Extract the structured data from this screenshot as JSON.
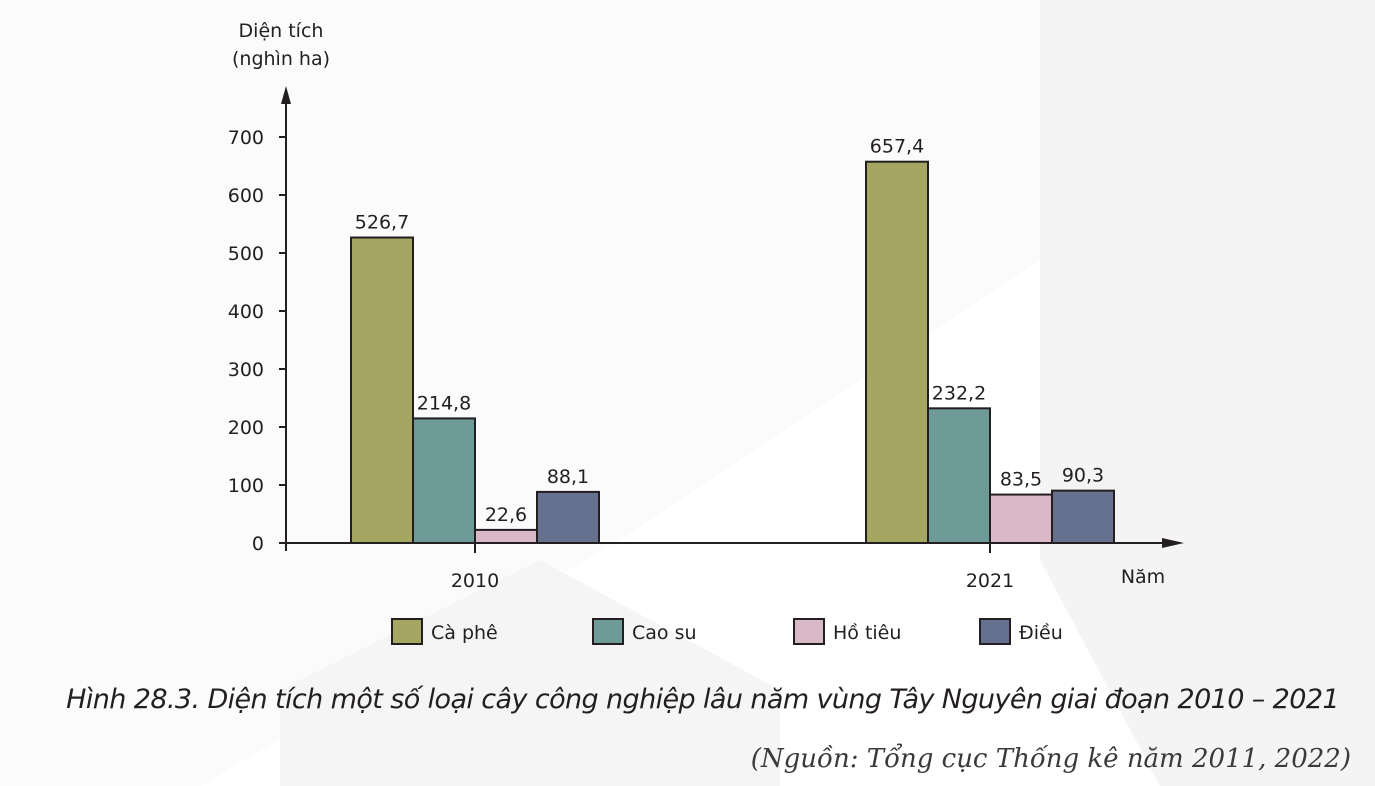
{
  "chart_data": {
    "type": "bar",
    "ylabel_line1": "Diện tích",
    "ylabel_line2": "(nghìn ha)",
    "xlabel": "Năm",
    "ylim": [
      0,
      700
    ],
    "yticks": [
      0,
      100,
      200,
      300,
      400,
      500,
      600,
      700
    ],
    "categories": [
      "2010",
      "2021"
    ],
    "series": [
      {
        "name": "Cà phê",
        "color": "#a5a661",
        "values": [
          526.7,
          657.4
        ],
        "labels": [
          "526,7",
          "657,4"
        ]
      },
      {
        "name": "Cao su",
        "color": "#6e9a97",
        "values": [
          214.8,
          232.2
        ],
        "labels": [
          "214,8",
          "232,2"
        ]
      },
      {
        "name": "Hồ tiêu",
        "color": "#d9b8c7",
        "values": [
          22.6,
          83.5
        ],
        "labels": [
          "22,6",
          "83,5"
        ]
      },
      {
        "name": "Điều",
        "color": "#667190",
        "values": [
          88.1,
          90.3
        ],
        "labels": [
          "88,1",
          "90,3"
        ]
      }
    ],
    "legend_position": "bottom",
    "grid": false
  },
  "caption": "Hình 28.3. Diện tích một số loại cây công nghiệp lâu năm vùng Tây Nguyên giai đoạn 2010 – 2021",
  "source": "(Nguồn: Tổng cục Thống kê năm 2011, 2022)"
}
